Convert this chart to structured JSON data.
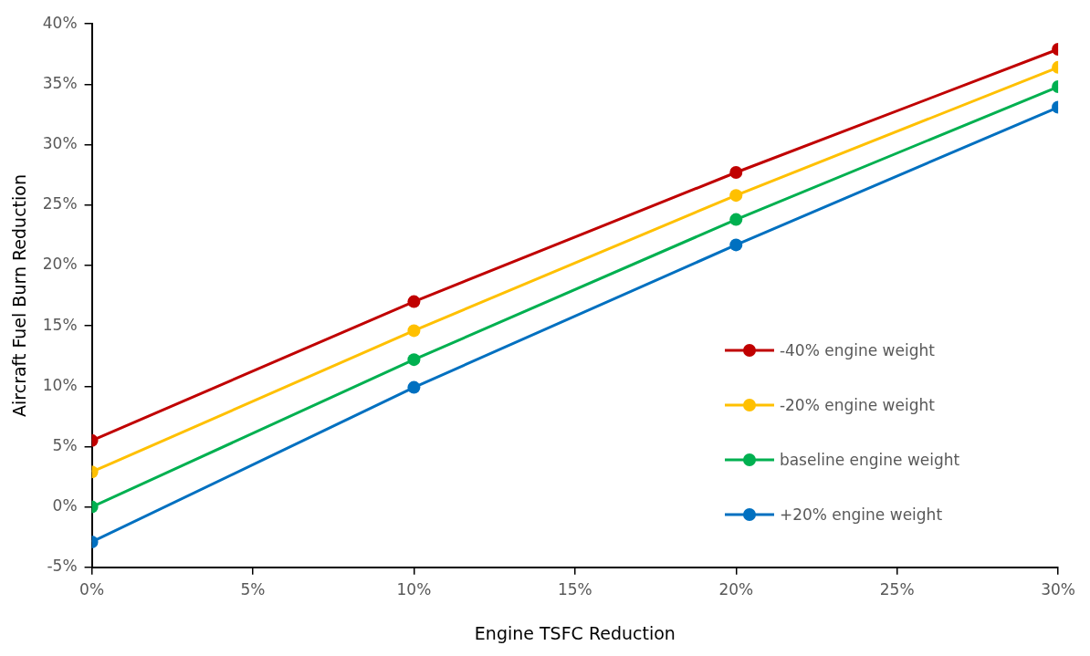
{
  "chart_data": {
    "type": "line",
    "xlabel": "Engine TSFC Reduction",
    "ylabel": "Aircraft Fuel Burn Reduction",
    "x": [
      0,
      10,
      20,
      30
    ],
    "series": [
      {
        "name": "-40% engine weight",
        "color": "#c00000",
        "values": [
          5.5,
          17.0,
          27.7,
          37.9
        ]
      },
      {
        "name": "-20% engine weight",
        "color": "#ffc000",
        "values": [
          2.9,
          14.6,
          25.8,
          36.4
        ]
      },
      {
        "name": "baseline engine weight",
        "color": "#00b050",
        "values": [
          0,
          12.2,
          23.8,
          34.8
        ]
      },
      {
        "name": "+20% engine weight",
        "color": "#0070c0",
        "values": [
          -2.9,
          9.9,
          21.7,
          33.1
        ]
      }
    ],
    "xlim": [
      0,
      30
    ],
    "xticks": [
      {
        "value": 0,
        "label": "0%"
      },
      {
        "value": 5,
        "label": "5%"
      },
      {
        "value": 10,
        "label": "10%"
      },
      {
        "value": 15,
        "label": "15%"
      },
      {
        "value": 20,
        "label": "20%"
      },
      {
        "value": 25,
        "label": "25%"
      },
      {
        "value": 30,
        "label": "30%"
      }
    ],
    "ylim": [
      -5,
      40
    ],
    "yticks": [
      {
        "value": -5,
        "label": "-5%"
      },
      {
        "value": 0,
        "label": "0%"
      },
      {
        "value": 5,
        "label": "5%"
      },
      {
        "value": 10,
        "label": "10%"
      },
      {
        "value": 15,
        "label": "15%"
      },
      {
        "value": 20,
        "label": "20%"
      },
      {
        "value": 25,
        "label": "25%"
      },
      {
        "value": 30,
        "label": "30%"
      },
      {
        "value": 35,
        "label": "35%"
      },
      {
        "value": 40,
        "label": "40%"
      }
    ],
    "grid": false,
    "legend": "right",
    "marker": "circle",
    "line_style": "solid"
  }
}
